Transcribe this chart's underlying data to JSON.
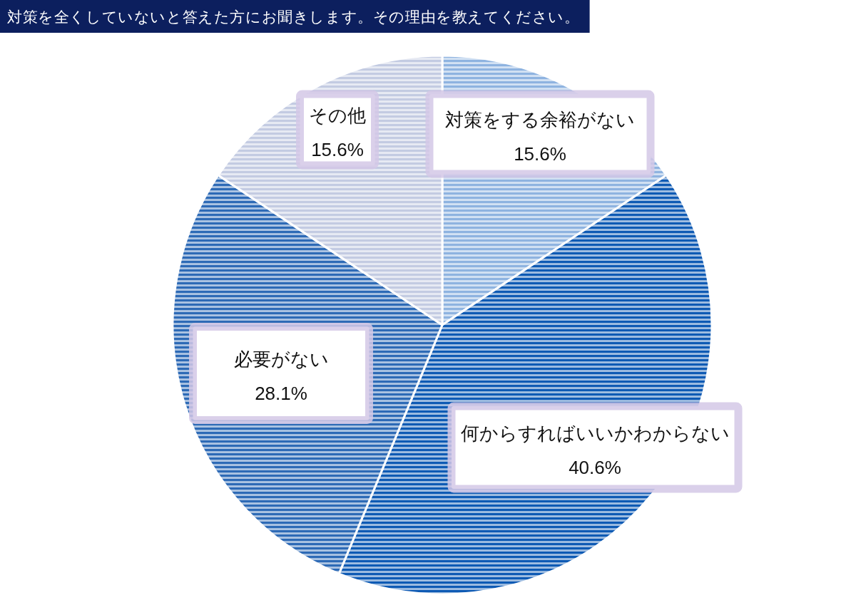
{
  "chart_data": {
    "type": "pie",
    "title": "対策を全くしていないと答えた方にお聞きします。その理由を教えてください。",
    "categories": [
      "対策をする余裕がない",
      "何からすればいいかわからない",
      "必要がない",
      "その他"
    ],
    "values": [
      15.6,
      40.6,
      28.1,
      15.6
    ],
    "value_labels": [
      "15.6%",
      "40.6%",
      "28.1%",
      "15.6%"
    ],
    "colors": [
      "#8eb3e0",
      "#0e5ab4",
      "#2d6ab6",
      "#c3cbe2"
    ]
  }
}
